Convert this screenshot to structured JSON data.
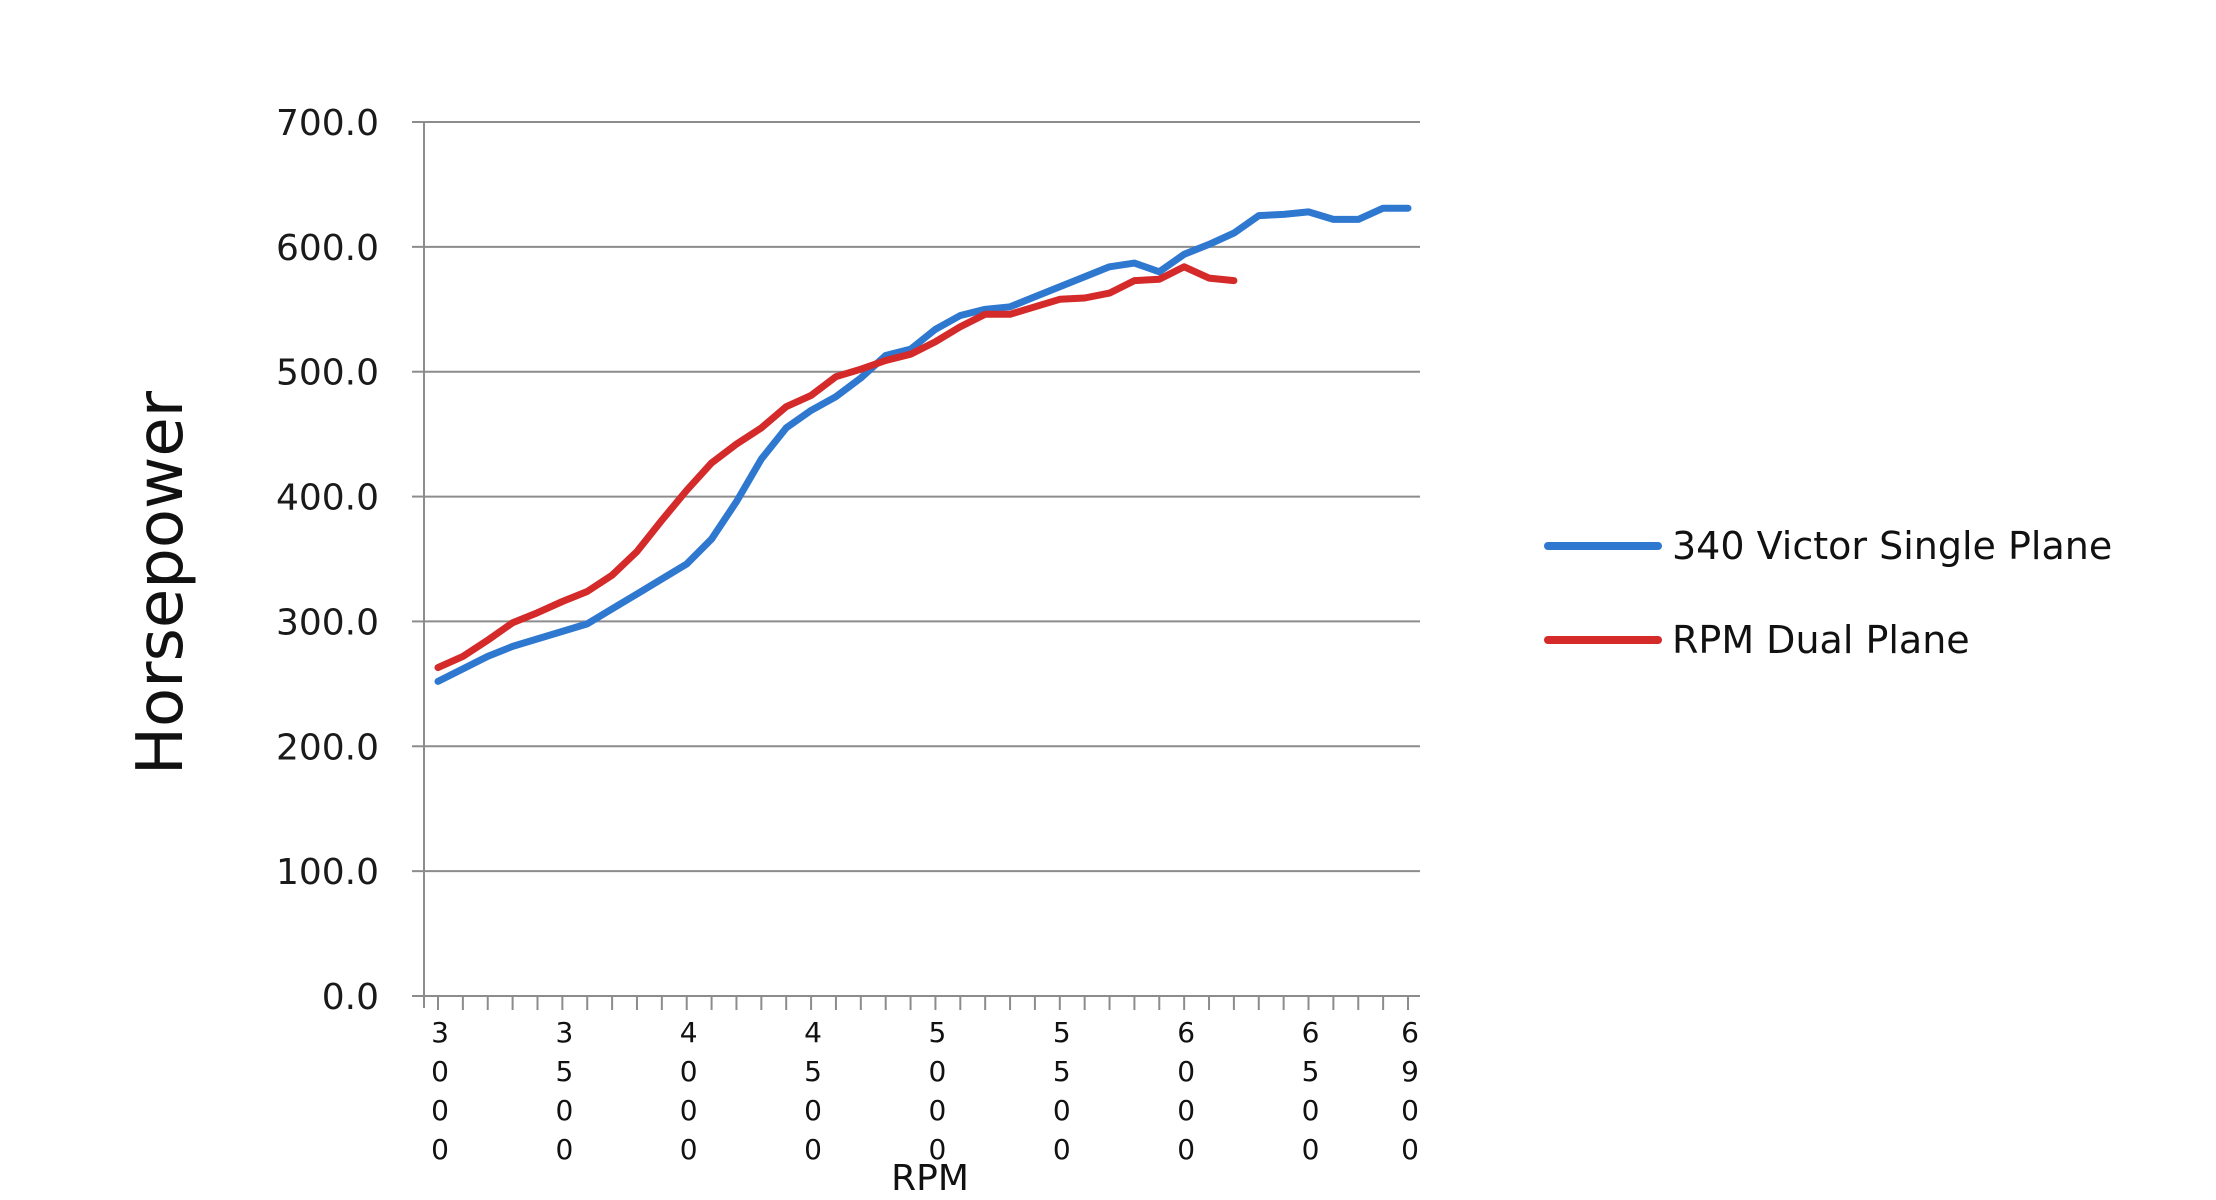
{
  "chart_data": {
    "type": "line",
    "title": "",
    "xlabel": "RPM",
    "ylabel": "Horsepower",
    "ylim": [
      0,
      700
    ],
    "xlim": [
      3000,
      6900
    ],
    "y_ticks": [
      "0.0",
      "100.0",
      "200.0",
      "300.0",
      "400.0",
      "500.0",
      "600.0",
      "700.0"
    ],
    "y_tick_values": [
      0,
      100,
      200,
      300,
      400,
      500,
      600,
      700
    ],
    "x_ticks": [
      "3000",
      "3500",
      "4000",
      "4500",
      "5000",
      "5500",
      "6000",
      "6500",
      "6900"
    ],
    "x_tick_values": [
      3000,
      3500,
      4000,
      4500,
      5000,
      5500,
      6000,
      6500,
      6900
    ],
    "grid": "horizontal",
    "legend_position": "right",
    "series": [
      {
        "name": "340 Victor Single Plane",
        "color": "#2f78d0",
        "x": [
          3000,
          3100,
          3200,
          3300,
          3400,
          3500,
          3600,
          3700,
          3800,
          3900,
          4000,
          4100,
          4200,
          4300,
          4400,
          4500,
          4600,
          4700,
          4800,
          4900,
          5000,
          5100,
          5200,
          5300,
          5400,
          5500,
          5600,
          5700,
          5800,
          5900,
          6000,
          6100,
          6200,
          6300,
          6400,
          6500,
          6600,
          6700,
          6800,
          6900
        ],
        "values": [
          252,
          262,
          272,
          280,
          286,
          292,
          298,
          310,
          322,
          334,
          346,
          366,
          396,
          430,
          455,
          469,
          480,
          495,
          513,
          518,
          534,
          545,
          550,
          552,
          560,
          568,
          576,
          584,
          587,
          580,
          594,
          602,
          611,
          625,
          626,
          628,
          622,
          622,
          631,
          631
        ]
      },
      {
        "name": "RPM Dual Plane",
        "color": "#d42a2a",
        "x": [
          3000,
          3100,
          3200,
          3300,
          3400,
          3500,
          3600,
          3700,
          3800,
          3900,
          4000,
          4100,
          4200,
          4300,
          4400,
          4500,
          4600,
          4700,
          4800,
          4900,
          5000,
          5100,
          5200,
          5300,
          5400,
          5500,
          5600,
          5700,
          5800,
          5900,
          6000,
          6100,
          6200
        ],
        "values": [
          263,
          272,
          285,
          299,
          307,
          316,
          324,
          337,
          356,
          381,
          405,
          427,
          442,
          455,
          472,
          481,
          496,
          502,
          509,
          514,
          524,
          536,
          546,
          546,
          552,
          558,
          559,
          563,
          573,
          574,
          584,
          575,
          573
        ]
      }
    ]
  }
}
